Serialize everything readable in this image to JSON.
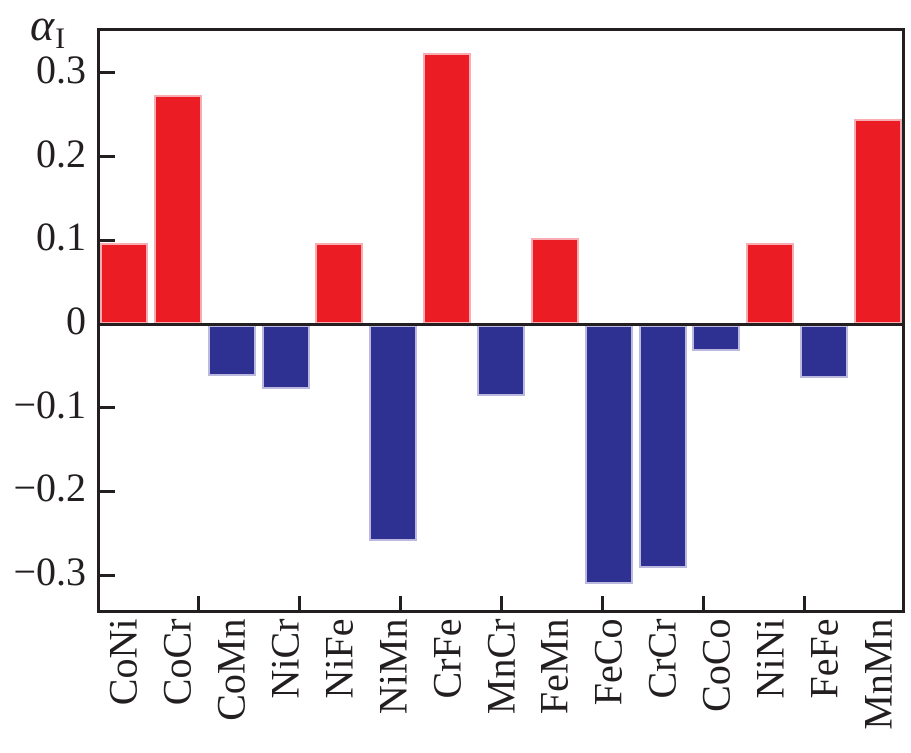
{
  "chart_data": {
    "type": "bar",
    "title": "",
    "ylabel_symbol": "α",
    "ylabel_subscript": "I",
    "xlabel": "",
    "categories": [
      "CoNi",
      "CoCr",
      "CoMn",
      "NiCr",
      "NiFe",
      "NiMn",
      "CrFe",
      "MnCr",
      "FeMn",
      "FeCo",
      "CrCr",
      "CoCo",
      "NiNi",
      "FeFe",
      "MnMn"
    ],
    "values": [
      0.097,
      0.273,
      -0.061,
      -0.076,
      0.097,
      -0.258,
      0.324,
      -0.085,
      0.103,
      -0.31,
      -0.29,
      -0.031,
      0.097,
      -0.063,
      0.245
    ],
    "ylim": [
      -0.35,
      0.35
    ],
    "ytick_values": [
      0.3,
      0.2,
      0.1,
      0,
      -0.1,
      -0.2,
      -0.3
    ],
    "ytick_labels": [
      "0.3",
      "0.2",
      "0.1",
      "0",
      "−0.1",
      "−0.2",
      "−0.3"
    ],
    "num_xtick_separators": 7,
    "grid": false,
    "legend": null,
    "colors": {
      "positive": "#ec1c24",
      "negative": "#2e3192",
      "positive_edge": "#f7adb1",
      "negative_edge": "#bbbade",
      "axis": "#231f20"
    }
  }
}
